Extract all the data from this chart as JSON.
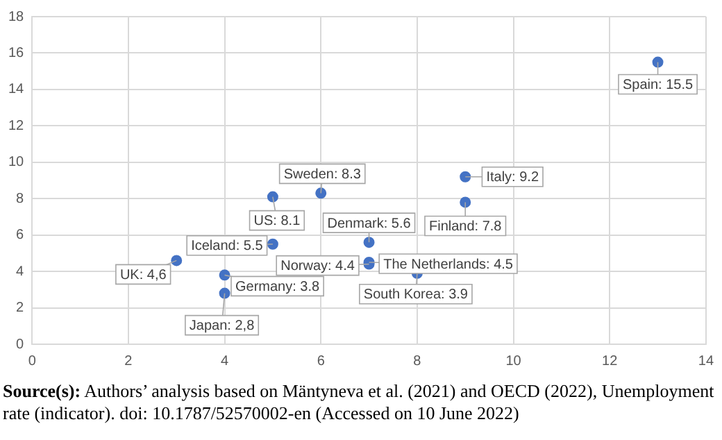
{
  "chart_data": {
    "type": "scatter",
    "x": [
      3,
      4,
      4,
      5,
      5,
      6,
      7,
      7,
      7,
      8,
      9,
      9,
      13
    ],
    "values": [
      4.6,
      3.8,
      2.8,
      8.1,
      5.5,
      8.3,
      5.6,
      4.4,
      4.5,
      3.9,
      9.2,
      7.8,
      15.5
    ],
    "value_labels": [
      "UK: 4,6",
      "Germany: 3.8",
      "Japan: 2,8",
      "US: 8.1",
      "Iceland: 5.5",
      "Sweden: 8.3",
      "Denmark: 5.6",
      "Norway: 4.4",
      "The Netherlands: 4.5",
      "South Korea: 3.9",
      "Italy: 9.2",
      "Finland: 7.8",
      "Spain: 15.5"
    ],
    "color": "#4472c4",
    "marker": "circle",
    "grid": true,
    "legend": false,
    "xlim": [
      0,
      14
    ],
    "xticks": [
      0,
      2,
      4,
      6,
      8,
      10,
      12,
      14
    ],
    "ylim": [
      0,
      18
    ],
    "yticks": [
      0,
      2,
      4,
      6,
      8,
      10,
      12,
      14,
      16,
      18
    ],
    "annotations": [
      "Source(s): Authors’ analysis based on Mäntyneva et al. (2021) and OECD (2022), Unemployment rate (indicator). doi: 10.1787/52570002-en (Accessed on 10 June 2022)"
    ]
  }
}
